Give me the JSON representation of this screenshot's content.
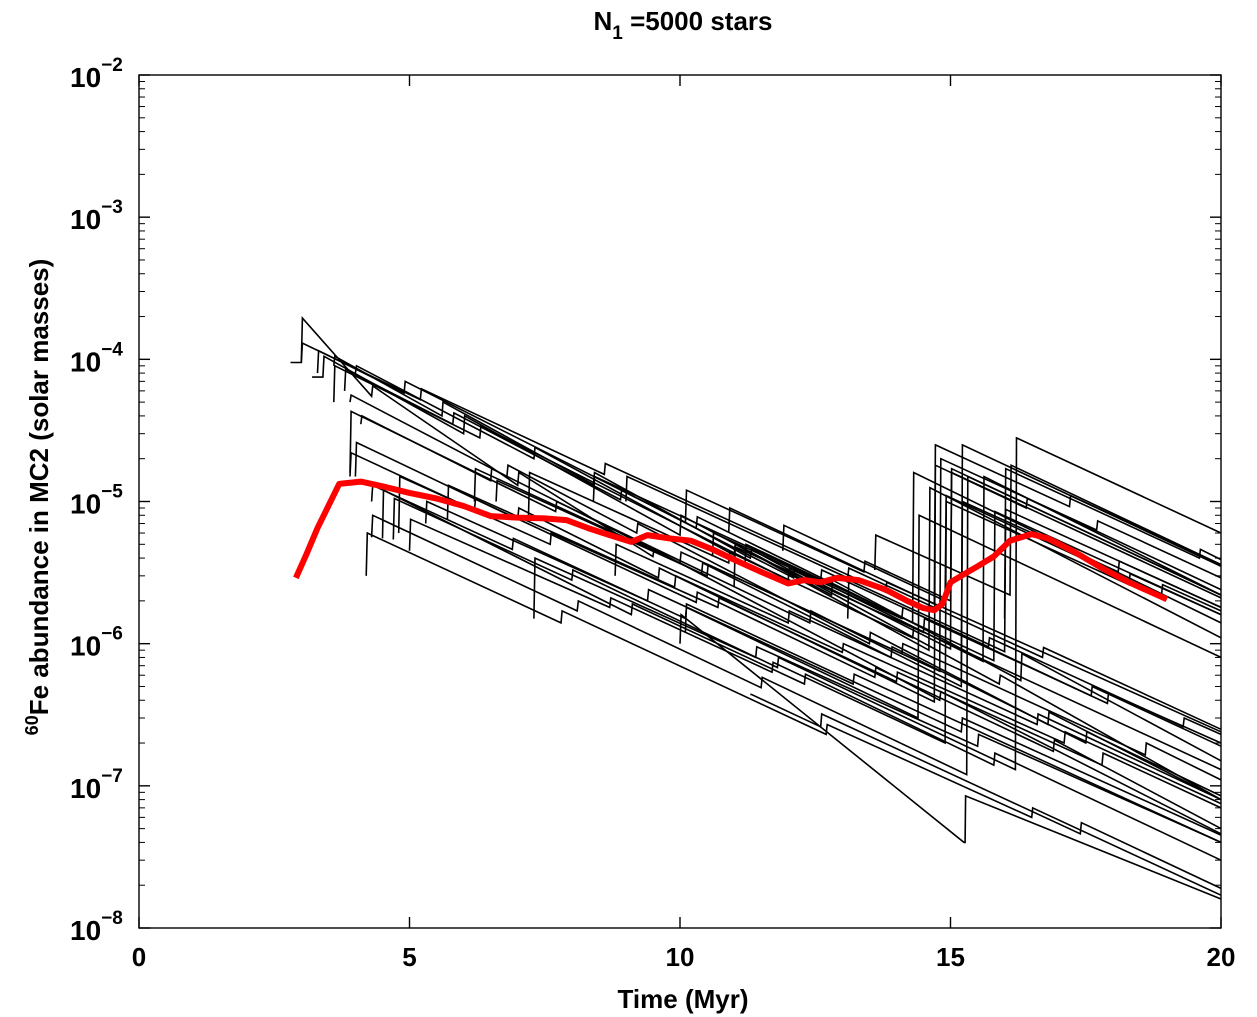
{
  "chart_data": {
    "type": "line",
    "title": {
      "main": "N",
      "sub": "1",
      "rest": " =5000 stars"
    },
    "xlabel": "Time (Myr)",
    "ylabel": {
      "sup": "60",
      "rest": "Fe abundance in MC2 (solar masses)"
    },
    "xlim": [
      0,
      20
    ],
    "ylim": [
      1e-08,
      0.01
    ],
    "yscale": "log",
    "grid": false,
    "x_ticks": [
      0,
      5,
      10,
      15,
      20
    ],
    "x_tick_labels": [
      "0",
      "5",
      "10",
      "15",
      "20"
    ],
    "y_ticks": [
      1e-08,
      1e-07,
      1e-06,
      1e-05,
      0.0001,
      0.001,
      0.01
    ],
    "y_tick_labels": [
      {
        "base": "10",
        "exp": "−8"
      },
      {
        "base": "10",
        "exp": "−7"
      },
      {
        "base": "10",
        "exp": "−6"
      },
      {
        "base": "10",
        "exp": "−5"
      },
      {
        "base": "10",
        "exp": "−4"
      },
      {
        "base": "10",
        "exp": "−3"
      },
      {
        "base": "10",
        "exp": "−2"
      }
    ],
    "colors": {
      "trajectories": "#000000",
      "mean": "#ff0000"
    },
    "series": [
      {
        "role": "mean",
        "x": [
          2.9,
          3.1,
          3.3,
          3.7,
          4.1,
          4.5,
          5.0,
          5.5,
          6.0,
          6.5,
          7.0,
          7.5,
          7.9,
          8.3,
          8.7,
          9.1,
          9.4,
          9.8,
          10.2,
          10.6,
          11.0,
          11.5,
          12.0,
          12.3,
          12.6,
          12.9,
          13.3,
          13.8,
          14.2,
          14.5,
          14.7,
          14.85,
          15.0,
          15.2,
          15.5,
          15.8,
          16.1,
          16.5,
          16.8,
          17.3,
          17.8,
          18.3,
          19.0
        ],
        "y": [
          2.9e-06,
          4.3e-06,
          6.5e-06,
          1.33e-05,
          1.38e-05,
          1.28e-05,
          1.15e-05,
          1.05e-05,
          9.3e-06,
          7.9e-06,
          7.7e-06,
          7.6e-06,
          7.4e-06,
          6.5e-06,
          5.8e-06,
          5.2e-06,
          5.8e-06,
          5.5e-06,
          5.3e-06,
          4.6e-06,
          3.9e-06,
          3.2e-06,
          2.65e-06,
          2.8e-06,
          2.7e-06,
          2.9e-06,
          2.8e-06,
          2.4e-06,
          2e-06,
          1.78e-06,
          1.72e-06,
          1.9e-06,
          2.7e-06,
          3e-06,
          3.5e-06,
          4.1e-06,
          5.3e-06,
          5.9e-06,
          5.5e-06,
          4.4e-06,
          3.4e-06,
          2.7e-06,
          2.05e-06
        ]
      },
      {
        "role": "trajectory",
        "x": [
          2.8,
          3.0,
          3.02,
          4.3,
          4.32,
          7.0,
          7.02,
          9.5,
          9.52,
          14.8,
          14.82,
          20.0
        ],
        "y": [
          9.5e-05,
          9.5e-05,
          0.000195,
          5.5e-05,
          6.5e-05,
          1.3e-05,
          1.6e-05,
          4.1e-06,
          4.6e-06,
          4e-07,
          4.6e-07,
          4.6e-08
        ]
      },
      {
        "role": "trajectory",
        "x": [
          3.2,
          3.4,
          3.42,
          6.0,
          6.02,
          10.0,
          10.02,
          12.8,
          12.82,
          16.3,
          16.32,
          20.0
        ],
        "y": [
          7.5e-05,
          7.5e-05,
          0.000105,
          3e-05,
          4e-05,
          5.8e-06,
          8e-06,
          2.2e-06,
          2.8e-06,
          5.5e-07,
          8.5e-07,
          1.5e-07
        ]
      },
      {
        "role": "trajectory",
        "x": [
          3.6,
          3.62,
          5.6,
          5.62,
          8.4,
          8.42,
          11.3,
          11.32,
          15.9,
          15.92,
          20.0
        ],
        "y": [
          9e-05,
          0.000105,
          4e-05,
          5e-05,
          1.32e-05,
          1.6e-05,
          4e-06,
          4.6e-06,
          5.2e-07,
          6e-07,
          8e-08
        ]
      },
      {
        "role": "trajectory",
        "x": [
          4.0,
          4.02,
          7.3,
          7.32,
          11.0,
          11.02,
          14.6,
          14.62,
          20.0
        ],
        "y": [
          8e-05,
          9e-05,
          2e-05,
          2.4e-05,
          4.2e-06,
          5e-06,
          9e-07,
          1.25e-05,
          1.1e-06
        ]
      },
      {
        "role": "trajectory",
        "x": [
          3.9,
          3.92,
          6.8,
          6.82,
          9.2,
          9.22,
          13.5,
          13.52,
          16.8,
          16.82,
          20.0
        ],
        "y": [
          5e-05,
          5.6e-05,
          1.5e-05,
          1.8e-05,
          6e-06,
          7e-06,
          1e-06,
          1.2e-06,
          2.7e-07,
          3.3e-07,
          8e-08
        ]
      },
      {
        "role": "trajectory",
        "x": [
          3.8,
          3.82,
          5.8,
          5.82,
          8.9,
          8.92,
          12.1,
          12.12,
          15.6,
          15.62,
          20.0
        ],
        "y": [
          6e-05,
          8.5e-05,
          3.5e-05,
          4.2e-05,
          1.03e-05,
          1.2e-05,
          2.9e-06,
          3.4e-06,
          7.5e-07,
          1.5e-05,
          2.2e-06
        ]
      },
      {
        "role": "trajectory",
        "x": [
          4.1,
          4.12,
          6.5,
          6.52,
          10.4,
          10.42,
          13.9,
          13.92,
          17.5,
          17.52,
          20.0
        ],
        "y": [
          3.5e-05,
          4e-05,
          1.4e-05,
          1.7e-05,
          3.1e-06,
          3.7e-06,
          8e-07,
          9.5e-07,
          2e-07,
          2.4e-07,
          8.5e-08
        ]
      },
      {
        "role": "trajectory",
        "x": [
          3.9,
          3.92,
          7.7,
          7.72,
          12.4,
          12.42,
          15.2,
          15.22,
          20.0
        ],
        "y": [
          1.6e-05,
          4.3e-05,
          8.5e-06,
          1e-05,
          1.4e-06,
          1.7e-06,
          5e-07,
          2.5e-05,
          3.5e-06
        ]
      },
      {
        "role": "trajectory",
        "x": [
          4.0,
          4.02,
          7.0,
          7.02,
          9.6,
          9.62,
          14.7,
          14.72,
          16.4,
          16.42,
          20.0
        ],
        "y": [
          1.5e-05,
          2.6e-05,
          7.5e-06,
          9e-06,
          2.9e-06,
          3.4e-06,
          3.9e-07,
          1.8e-05,
          9e-06,
          1.05e-05,
          2.4e-06
        ]
      },
      {
        "role": "trajectory",
        "x": [
          3.9,
          3.92,
          6.2,
          6.22,
          10.3,
          10.32,
          13.6,
          13.62,
          16.9,
          16.92,
          20.0
        ],
        "y": [
          1.5e-05,
          2.2e-05,
          8.7e-06,
          1.04e-05,
          1.95e-06,
          2.3e-06,
          5.8e-07,
          6.8e-07,
          1.75e-07,
          2.1e-07,
          5e-08
        ]
      },
      {
        "role": "trajectory",
        "x": [
          4.3,
          4.32,
          6.9,
          6.92,
          10.1,
          10.12,
          14.4,
          14.42,
          20.0
        ],
        "y": [
          1e-05,
          1.3e-05,
          4.6e-06,
          5.5e-06,
          1.5e-06,
          1.8e-06,
          3e-07,
          8e-06,
          8e-07
        ]
      },
      {
        "role": "trajectory",
        "x": [
          4.3,
          4.32,
          8.1,
          8.12,
          11.5,
          11.52,
          15.3,
          15.32,
          20.0
        ],
        "y": [
          5.6e-06,
          8e-06,
          1.7e-06,
          2e-06,
          4.9e-07,
          5.8e-07,
          1.2e-07,
          1.5e-05,
          2.2e-06
        ]
      },
      {
        "role": "trajectory",
        "x": [
          4.5,
          4.52,
          9.1,
          9.12,
          12.3,
          12.32,
          15.8,
          15.82,
          20.0
        ],
        "y": [
          5.5e-06,
          1.2e-05,
          1.6e-06,
          1.9e-06,
          5.2e-07,
          6.1e-07,
          1.4e-07,
          1.7e-07,
          3e-08
        ]
      },
      {
        "role": "trajectory",
        "x": [
          4.7,
          4.72,
          8.0,
          8.02,
          11.8,
          11.82,
          16.2,
          16.22,
          20.0
        ],
        "y": [
          5.4e-06,
          1.05e-05,
          2.8e-06,
          3.3e-06,
          6.8e-07,
          8e-07,
          1.3e-07,
          2.8e-05,
          6e-06
        ]
      },
      {
        "role": "trajectory",
        "x": [
          4.8,
          4.82,
          7.6,
          7.62,
          10.7,
          10.72,
          14.0,
          14.02,
          17.8,
          17.82,
          20.0
        ],
        "y": [
          6e-06,
          1.5e-05,
          5e-06,
          6e-06,
          1.8e-06,
          2.1e-06,
          5.4e-07,
          6.3e-07,
          1.4e-07,
          1.7e-07,
          7e-08
        ]
      },
      {
        "role": "trajectory",
        "x": [
          5.0,
          5.02,
          8.7,
          8.72,
          11.7,
          11.72,
          14.9,
          14.92,
          18.3,
          18.32,
          20.0
        ],
        "y": [
          4.5e-06,
          7.5e-06,
          1.8e-06,
          2.1e-06,
          6.3e-07,
          7.4e-07,
          2e-07,
          1e-05,
          2.6e-06,
          3.1e-06,
          1.6e-06
        ]
      },
      {
        "role": "trajectory",
        "x": [
          5.3,
          5.32,
          9.4,
          9.42,
          13.2,
          13.22,
          20.0
        ],
        "y": [
          7e-06,
          1e-05,
          2e-06,
          2.4e-06,
          5.2e-07,
          6.1e-07,
          4e-08
        ]
      },
      {
        "role": "trajectory",
        "x": [
          5.7,
          5.72,
          9.9,
          9.92,
          13.0,
          13.02,
          17.1,
          17.12,
          20.0
        ],
        "y": [
          7.5e-06,
          1.3e-05,
          2.5e-06,
          3e-06,
          8.7e-07,
          1e-06,
          2e-07,
          2.4e-07,
          7.5e-08
        ]
      },
      {
        "role": "trajectory",
        "x": [
          6.2,
          6.22,
          10.0,
          10.02,
          14.8,
          14.82,
          17.7,
          17.72,
          20.0
        ],
        "y": [
          1e-05,
          1.7e-05,
          3.7e-06,
          4.4e-06,
          6.4e-07,
          2e-05,
          6.3e-06,
          7.3e-06,
          2.9e-06
        ]
      },
      {
        "role": "trajectory",
        "x": [
          6.6,
          6.62,
          10.5,
          10.52,
          14.1,
          14.12,
          18.6,
          18.62,
          20.0
        ],
        "y": [
          1e-05,
          1.4e-05,
          3e-06,
          3.6e-06,
          8.5e-07,
          1e-06,
          1.65e-07,
          2e-07,
          1.1e-07
        ]
      },
      {
        "role": "trajectory",
        "x": [
          7.2,
          7.22,
          10.9,
          10.92,
          14.3,
          14.32,
          20.0
        ],
        "y": [
          8e-06,
          1.6e-05,
          3.7e-06,
          4.4e-06,
          1.1e-06,
          1.3e-06,
          1.3e-07
        ]
      },
      {
        "role": "trajectory",
        "x": [
          8.4,
          8.42,
          12.6,
          12.62,
          15.7,
          15.72,
          19.3,
          19.32,
          20.0
        ],
        "y": [
          1e-05,
          1.5e-05,
          2.8e-06,
          3.3e-06,
          9.5e-07,
          1.1e-06,
          2.6e-07,
          3e-07,
          2.3e-07
        ]
      },
      {
        "role": "trajectory",
        "x": [
          9.0,
          9.02,
          13.1,
          13.12,
          16.7,
          16.72,
          20.0
        ],
        "y": [
          1e-05,
          1.5e-05,
          2.9e-06,
          3.4e-06,
          8e-07,
          9.4e-07,
          2.5e-07
        ]
      },
      {
        "role": "trajectory",
        "x": [
          10.1,
          10.12,
          13.4,
          13.42,
          15.0,
          15.02,
          20.0
        ],
        "y": [
          7e-06,
          1.2e-05,
          3.2e-06,
          3.8e-06,
          2e-06,
          1.6e-05,
          2.1e-06
        ]
      },
      {
        "role": "trajectory",
        "x": [
          10.9,
          10.92,
          14.7,
          14.72,
          17.2,
          17.22,
          20.0
        ],
        "y": [
          6e-06,
          9e-06,
          1.9e-06,
          2.5e-05,
          9.2e-06,
          1.1e-05,
          3.6e-06
        ]
      },
      {
        "role": "trajectory",
        "x": [
          11.9,
          11.92,
          14.9,
          14.92,
          18.9,
          18.92,
          20.0
        ],
        "y": [
          4.5e-06,
          6.8e-06,
          2e-06,
          1.1e-05,
          2.2e-06,
          2.6e-06,
          1.7e-06
        ]
      },
      {
        "role": "trajectory",
        "x": [
          11.2,
          11.22,
          15.8,
          15.82,
          20.0
        ],
        "y": [
          3.5e-06,
          5e-06,
          7.6e-07,
          8.5e-06,
          1.6e-06
        ]
      },
      {
        "role": "trajectory",
        "x": [
          10.6,
          10.62,
          14.1,
          14.12,
          17.6,
          17.62,
          20.0
        ],
        "y": [
          4.1e-06,
          6e-06,
          1.5e-06,
          1.8e-06,
          4.3e-07,
          5e-07,
          1.9e-07
        ]
      },
      {
        "role": "trajectory",
        "x": [
          13.6,
          13.62,
          16.1,
          16.12,
          20.0
        ],
        "y": [
          3.3e-06,
          5.8e-06,
          2.2e-06,
          1.8e-05,
          3.6e-06
        ]
      },
      {
        "role": "trajectory",
        "x": [
          8.8,
          8.82,
          12.0,
          12.02,
          16.6,
          16.62,
          20.0
        ],
        "y": [
          3e-06,
          5e-06,
          1.4e-06,
          1.7e-06,
          2.7e-07,
          3.2e-07,
          8e-08
        ]
      },
      {
        "role": "trajectory",
        "x": [
          10.1,
          10.12,
          15.2,
          15.22,
          20.0
        ],
        "y": [
          1.2e-06,
          1.9e-06,
          2.4e-07,
          3e-07,
          4.5e-08
        ]
      },
      {
        "role": "trajectory",
        "x": [
          7.3,
          7.32,
          11.4,
          11.42,
          15.5,
          15.52,
          20.0
        ],
        "y": [
          1.5e-06,
          4e-06,
          8e-07,
          9.5e-07,
          1.9e-07,
          2.3e-07,
          4e-08
        ]
      },
      {
        "role": "trajectory",
        "x": [
          11.0,
          11.02,
          14.5,
          14.52,
          17.9,
          17.92,
          20.0
        ],
        "y": [
          2.5e-06,
          4.8e-06,
          1.2e-06,
          1.5e-06,
          3.8e-07,
          4.5e-07,
          2e-07
        ]
      },
      {
        "role": "trajectory",
        "x": [
          13.1,
          13.12,
          16.0,
          16.02,
          20.0
        ],
        "y": [
          1.5e-06,
          2.8e-06,
          8.8e-07,
          8.8e-06,
          1.8e-06
        ]
      },
      {
        "role": "trajectory",
        "x": [
          15.2,
          15.22,
          18.1,
          18.12,
          20.0
        ],
        "y": [
          6e-07,
          1e-05,
          3.2e-06,
          3.8e-06,
          1.8e-06
        ]
      },
      {
        "role": "trajectory",
        "x": [
          16.0,
          16.02,
          19.6,
          19.62,
          20.0
        ],
        "y": [
          1.5e-06,
          1.7e-05,
          4e-06,
          4.6e-06,
          3.9e-06
        ]
      },
      {
        "role": "trajectory",
        "x": [
          4.2,
          4.22,
          7.8,
          7.82,
          12.7,
          12.72,
          16.5,
          16.52,
          20.0
        ],
        "y": [
          3e-06,
          6e-06,
          1.4e-06,
          1.7e-06,
          2.3e-07,
          2.7e-07,
          6e-08,
          7e-08,
          1.7e-08
        ]
      },
      {
        "role": "trajectory",
        "x": [
          3.0,
          3.02,
          5.2,
          5.22,
          8.6,
          8.62,
          13.8,
          13.82,
          20.0
        ],
        "y": [
          9.5e-05,
          0.00013,
          5.2e-05,
          6.2e-05,
          1.55e-05,
          1.85e-05,
          2.3e-06,
          2.7e-06,
          2.4e-07
        ]
      },
      {
        "role": "trajectory",
        "x": [
          3.3,
          3.32,
          4.9,
          4.92,
          10.3,
          10.32,
          14.3,
          14.32,
          20.0
        ],
        "y": [
          8e-05,
          0.000115,
          5.8e-05,
          7e-05,
          6.5e-06,
          7.8e-06,
          1.4e-06,
          1.6e-05,
          1.4e-06
        ]
      },
      {
        "role": "trajectory",
        "x": [
          3.6,
          3.62,
          6.3,
          6.32,
          12.0,
          12.02,
          15.0,
          15.02,
          20.0
        ],
        "y": [
          5e-05,
          9e-05,
          2.8e-05,
          3.4e-05,
          2.8e-06,
          3.4e-06,
          9.2e-07,
          1.7e-05,
          2.2e-06
        ]
      },
      {
        "role": "trajectory",
        "x": [
          10.0,
          10.02,
          15.25,
          15.27,
          15.28,
          20.0
        ],
        "y": [
          1e-06,
          1.6e-06,
          4e-08,
          4e-08,
          8.5e-08,
          1.6e-08
        ]
      },
      {
        "role": "trajectory",
        "x": [
          11.3,
          11.32,
          12.6,
          12.62,
          17.4,
          17.42,
          20.0
        ],
        "y": [
          4.4e-07,
          4.4e-07,
          2.6e-07,
          3.2e-07,
          4.6e-08,
          5.5e-08,
          1.9e-08
        ]
      }
    ]
  }
}
